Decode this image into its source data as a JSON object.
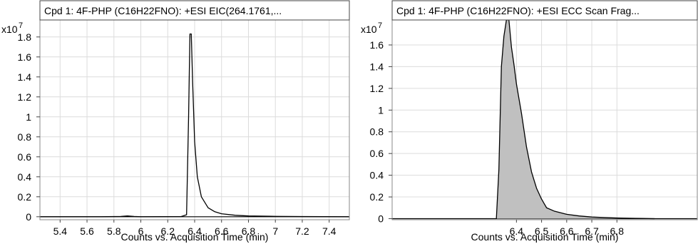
{
  "chart_data": [
    {
      "type": "area",
      "title": "Cpd 1: 4F-PHP (C16H22FNO): +ESI EIC(264.1761,...",
      "xlabel": "Counts vs. Acquisition Time (min)",
      "y_multiplier_label": "x10",
      "y_multiplier_exp": "7",
      "fill": "none",
      "xlim": [
        5.25,
        7.55
      ],
      "ylim": [
        -0.03,
        1.97
      ],
      "x_ticks": [
        5.4,
        5.6,
        5.8,
        6.0,
        6.2,
        6.4,
        6.6,
        6.8,
        7.0,
        7.2,
        7.4
      ],
      "x_tick_labels": [
        "5.4",
        "5.6",
        "5.8",
        "6",
        "6.2",
        "6.4",
        "6.6",
        "6.8",
        "7",
        "7.2",
        "7.4"
      ],
      "y_ticks": [
        0,
        0.2,
        0.4,
        0.6,
        0.8,
        1.0,
        1.2,
        1.4,
        1.6,
        1.8
      ],
      "y_tick_labels": [
        "0",
        "0.2",
        "0.4",
        "0.6",
        "0.8",
        "1",
        "1.2",
        "1.4",
        "1.6",
        "1.8"
      ],
      "grid": true,
      "series": [
        {
          "x": [
            5.25,
            5.7,
            5.85,
            5.9,
            5.95,
            6.0,
            6.3,
            6.34,
            6.355,
            6.365,
            6.375,
            6.385,
            6.4,
            6.42,
            6.45,
            6.5,
            6.55,
            6.6,
            6.7,
            6.8,
            7.0,
            7.2,
            7.55
          ],
          "y": [
            0.0,
            0.0,
            0.003,
            0.008,
            0.003,
            0.0,
            0.002,
            0.02,
            1.0,
            1.83,
            1.83,
            1.35,
            0.75,
            0.4,
            0.2,
            0.09,
            0.05,
            0.03,
            0.015,
            0.008,
            0.004,
            0.002,
            0.0
          ]
        }
      ]
    },
    {
      "type": "area",
      "title": "Cpd 1: 4F-PHP (C16H22FNO): +ESI ECC Scan Frag...",
      "xlabel": "Counts vs. Acquisition Time (min)",
      "y_multiplier_label": "x10",
      "y_multiplier_exp": "7",
      "fill": "#c0c0c0",
      "xlim": [
        5.905,
        7.12
      ],
      "ylim": [
        -0.01,
        1.83
      ],
      "x_ticks": [
        6.4,
        6.5,
        6.6,
        6.7,
        6.8
      ],
      "x_tick_labels": [
        "6.4",
        "6.5",
        "6.6",
        "6.7",
        "6.8"
      ],
      "y_ticks": [
        0,
        0.2,
        0.4,
        0.6,
        0.8,
        1.0,
        1.2,
        1.4,
        1.6
      ],
      "y_tick_labels": [
        "0",
        "0.2",
        "0.4",
        "0.6",
        "0.8",
        "1",
        "1.2",
        "1.4",
        "1.6"
      ],
      "grid": true,
      "series": [
        {
          "x": [
            6.32,
            6.33,
            6.34,
            6.35,
            6.36,
            6.37,
            6.38,
            6.39,
            6.4,
            6.42,
            6.44,
            6.46,
            6.48,
            6.5,
            6.52,
            6.55,
            6.6,
            6.65,
            6.7,
            6.75,
            6.8,
            6.85,
            6.9,
            6.95
          ],
          "y": [
            0.0,
            0.45,
            1.4,
            1.68,
            1.83,
            1.83,
            1.58,
            1.42,
            1.24,
            0.97,
            0.66,
            0.43,
            0.28,
            0.18,
            0.1,
            0.07,
            0.04,
            0.025,
            0.015,
            0.01,
            0.006,
            0.004,
            0.002,
            0.0
          ]
        }
      ]
    }
  ]
}
